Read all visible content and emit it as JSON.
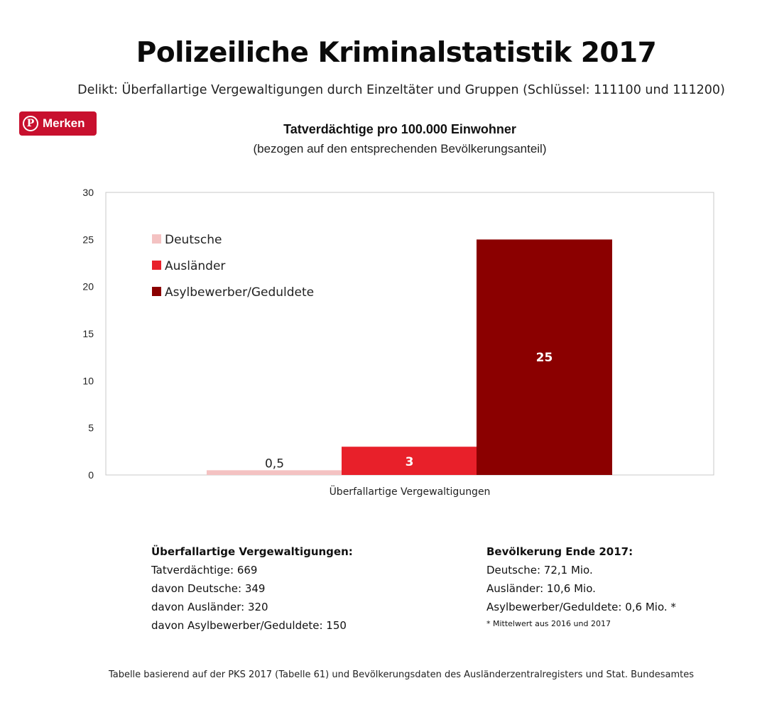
{
  "header": {
    "title": "Polizeiliche Kriminalstatistik 2017",
    "subtitle": "Delikt: Überfallartige Vergewaltigungen durch Einzeltäter und Gruppen (Schlüssel: 111100 und 111200)"
  },
  "pin_button": {
    "label": "Merken",
    "icon": "pinterest-icon",
    "color": "#c8102e"
  },
  "chart_data": {
    "type": "bar",
    "title": "Tatverdächtige pro 100.000 Einwohner",
    "subtitle": "(bezogen auf den entsprechenden Bevölkerungsanteil)",
    "categories": [
      "Überfallartige Vergewaltigungen"
    ],
    "series": [
      {
        "name": "Deutsche",
        "values": [
          0.5
        ],
        "label": "0,5",
        "color": "#f4c2c2"
      },
      {
        "name": "Ausländer",
        "values": [
          3
        ],
        "label": "3",
        "color": "#e8202a"
      },
      {
        "name": "Asylbewerber/Geduldete",
        "values": [
          25
        ],
        "label": "25",
        "color": "#8b0000"
      }
    ],
    "xlabel": "Überfallartige Vergewaltigungen",
    "ylabel": "",
    "ylim": [
      0,
      30
    ],
    "yticks": [
      0,
      5,
      10,
      15,
      20,
      25,
      30
    ],
    "grid": false,
    "legend": "top-left"
  },
  "stats_left": {
    "heading": "Überfallartige Vergewaltigungen:",
    "lines": [
      "Tatverdächtige: 669",
      "davon Deutsche: 349",
      "davon Ausländer: 320",
      "davon Asylbewerber/Geduldete: 150"
    ]
  },
  "stats_right": {
    "heading": "Bevölkerung Ende 2017:",
    "lines": [
      "Deutsche: 72,1 Mio.",
      "Ausländer: 10,6 Mio.",
      "Asylbewerber/Geduldete: 0,6 Mio. *"
    ],
    "note": "* Mittelwert aus 2016 und 2017"
  },
  "footer": "Tabelle basierend auf der PKS 2017 (Tabelle 61) und Bevölkerungsdaten des Ausländerzentralregisters und Stat. Bundesamtes"
}
